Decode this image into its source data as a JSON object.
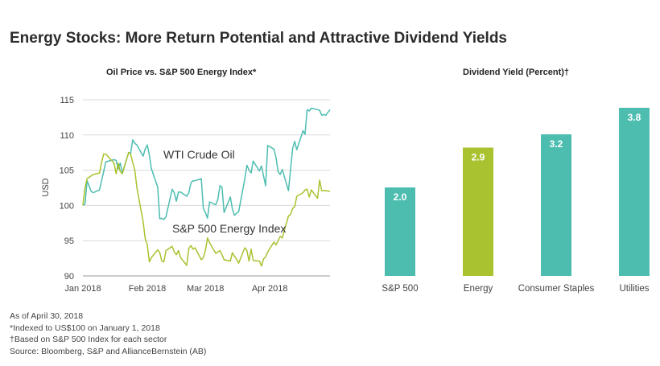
{
  "title": "Energy Stocks: More Return Potential and Attractive Dividend Yields",
  "colors": {
    "teal": "#4dbdb0",
    "lime": "#a9c22f",
    "grid": "#d9d9d9",
    "text": "#333333"
  },
  "chart_data": [
    {
      "type": "line",
      "title": "Oil Price vs. S&P 500 Energy Index*",
      "ylabel": "USD",
      "ylim": [
        90,
        115
      ],
      "yticks": [
        90,
        95,
        100,
        105,
        110,
        115
      ],
      "xticks": [
        {
          "label": "Jan 2018",
          "day": 0
        },
        {
          "label": "Feb 2018",
          "day": 31
        },
        {
          "label": "Mar 2018",
          "day": 59
        },
        {
          "label": "Apr 2018",
          "day": 90
        }
      ],
      "grid": true,
      "series": [
        {
          "name": "WTI Crude Oil",
          "color": "#4dbdb0",
          "x": [
            0,
            1,
            2,
            4,
            5,
            8,
            9,
            10,
            11,
            15,
            16,
            17,
            18,
            19,
            22,
            23,
            24,
            25,
            26,
            29,
            30,
            31,
            32,
            33,
            36,
            37,
            38,
            39,
            40,
            43,
            44,
            45,
            46,
            47,
            50,
            51,
            52,
            53,
            54,
            57,
            58,
            59,
            60,
            61,
            64,
            65,
            66,
            67,
            68,
            71,
            72,
            73,
            74,
            75,
            78,
            79,
            80,
            81,
            82,
            85,
            86,
            87,
            88,
            89,
            92,
            93,
            94,
            95,
            96,
            99,
            100,
            101,
            102,
            103,
            106,
            107,
            108,
            109,
            110,
            113,
            114,
            115,
            116,
            117,
            119
          ],
          "values": [
            100.0,
            100.2,
            103.5,
            102.0,
            101.8,
            102.2,
            103.5,
            104.8,
            106.2,
            106.5,
            106.4,
            105.2,
            106.0,
            104.6,
            107.5,
            107.4,
            109.3,
            108.8,
            108.6,
            107.0,
            108.0,
            108.6,
            107.1,
            105.2,
            102.6,
            98.1,
            98.2,
            98.0,
            98.4,
            102.3,
            101.8,
            100.6,
            101.9,
            101.9,
            101.3,
            101.8,
            103.2,
            103.5,
            103.5,
            103.8,
            99.6,
            99.0,
            98.2,
            100.5,
            100.1,
            100.9,
            102.8,
            102.6,
            99.0,
            101.2,
            99.5,
            98.6,
            98.9,
            99.1,
            103.8,
            105.7,
            105.0,
            104.6,
            106.3,
            104.9,
            105.6,
            104.2,
            102.8,
            108.5,
            108.0,
            106.8,
            104.8,
            104.4,
            105.1,
            102.1,
            105.1,
            108.1,
            109.1,
            107.9,
            110.6,
            110.1,
            113.6,
            113.4,
            113.8,
            113.6,
            113.5,
            112.8,
            112.9,
            112.8,
            113.6
          ]
        },
        {
          "name": "S&P 500 Energy Index",
          "color": "#a9c22f",
          "x": [
            0,
            1,
            2,
            4,
            5,
            8,
            9,
            10,
            11,
            15,
            16,
            17,
            18,
            19,
            22,
            23,
            24,
            25,
            26,
            29,
            30,
            31,
            32,
            33,
            36,
            37,
            38,
            39,
            40,
            43,
            44,
            45,
            46,
            47,
            50,
            51,
            52,
            53,
            54,
            57,
            58,
            59,
            60,
            61,
            64,
            65,
            66,
            67,
            68,
            71,
            72,
            73,
            74,
            75,
            78,
            79,
            80,
            81,
            82,
            85,
            86,
            87,
            88,
            89,
            92,
            93,
            94,
            95,
            96,
            99,
            100,
            101,
            102,
            103,
            106,
            107,
            108,
            109,
            110,
            113,
            114,
            115,
            116,
            117,
            119
          ],
          "values": [
            100.0,
            102.5,
            103.8,
            104.2,
            104.4,
            104.6,
            106.1,
            107.3,
            107.3,
            106.0,
            104.5,
            106.0,
            104.8,
            104.5,
            107.5,
            107.3,
            106.1,
            105.0,
            102.5,
            97.7,
            95.3,
            94.4,
            92.0,
            92.6,
            93.7,
            93.3,
            92.1,
            92.0,
            93.6,
            94.2,
            93.4,
            93.0,
            93.6,
            92.6,
            91.5,
            93.9,
            94.3,
            93.8,
            94.0,
            92.3,
            92.6,
            93.6,
            95.4,
            94.7,
            93.2,
            93.4,
            93.6,
            93.0,
            92.3,
            92.1,
            93.3,
            92.8,
            92.4,
            91.8,
            94.0,
            93.6,
            92.1,
            93.8,
            92.2,
            92.1,
            91.4,
            92.4,
            92.7,
            93.4,
            94.8,
            94.4,
            95.0,
            95.6,
            95.4,
            98.5,
            98.7,
            99.6,
            99.8,
            101.3,
            101.8,
            102.2,
            102.3,
            101.2,
            102.2,
            101.0,
            103.6,
            102.1,
            102.1,
            102.1,
            102.0
          ]
        }
      ],
      "annotations": [
        {
          "text": "WTI Crude Oil",
          "series": 0
        },
        {
          "text": "S&P 500 Energy Index",
          "series": 1
        }
      ]
    },
    {
      "type": "bar",
      "title": "Dividend Yield (Percent)†",
      "categories": [
        "S&P 500",
        "Energy",
        "Consumer Staples",
        "Utilities"
      ],
      "values": [
        2.0,
        2.9,
        3.2,
        3.8
      ],
      "value_labels": [
        "2.0",
        "2.9",
        "3.2",
        "3.8"
      ],
      "colors": [
        "#4dbdb0",
        "#a9c22f",
        "#4dbdb0",
        "#4dbdb0"
      ],
      "ylim": [
        0,
        3.8
      ],
      "grid": false
    }
  ],
  "footnotes": [
    "As of April 30, 2018",
    "*Indexed to US$100 on January 1, 2018",
    "†Based on S&P 500 Index for each sector",
    "Source: Bloomberg, S&P and AllianceBernstein (AB)"
  ]
}
